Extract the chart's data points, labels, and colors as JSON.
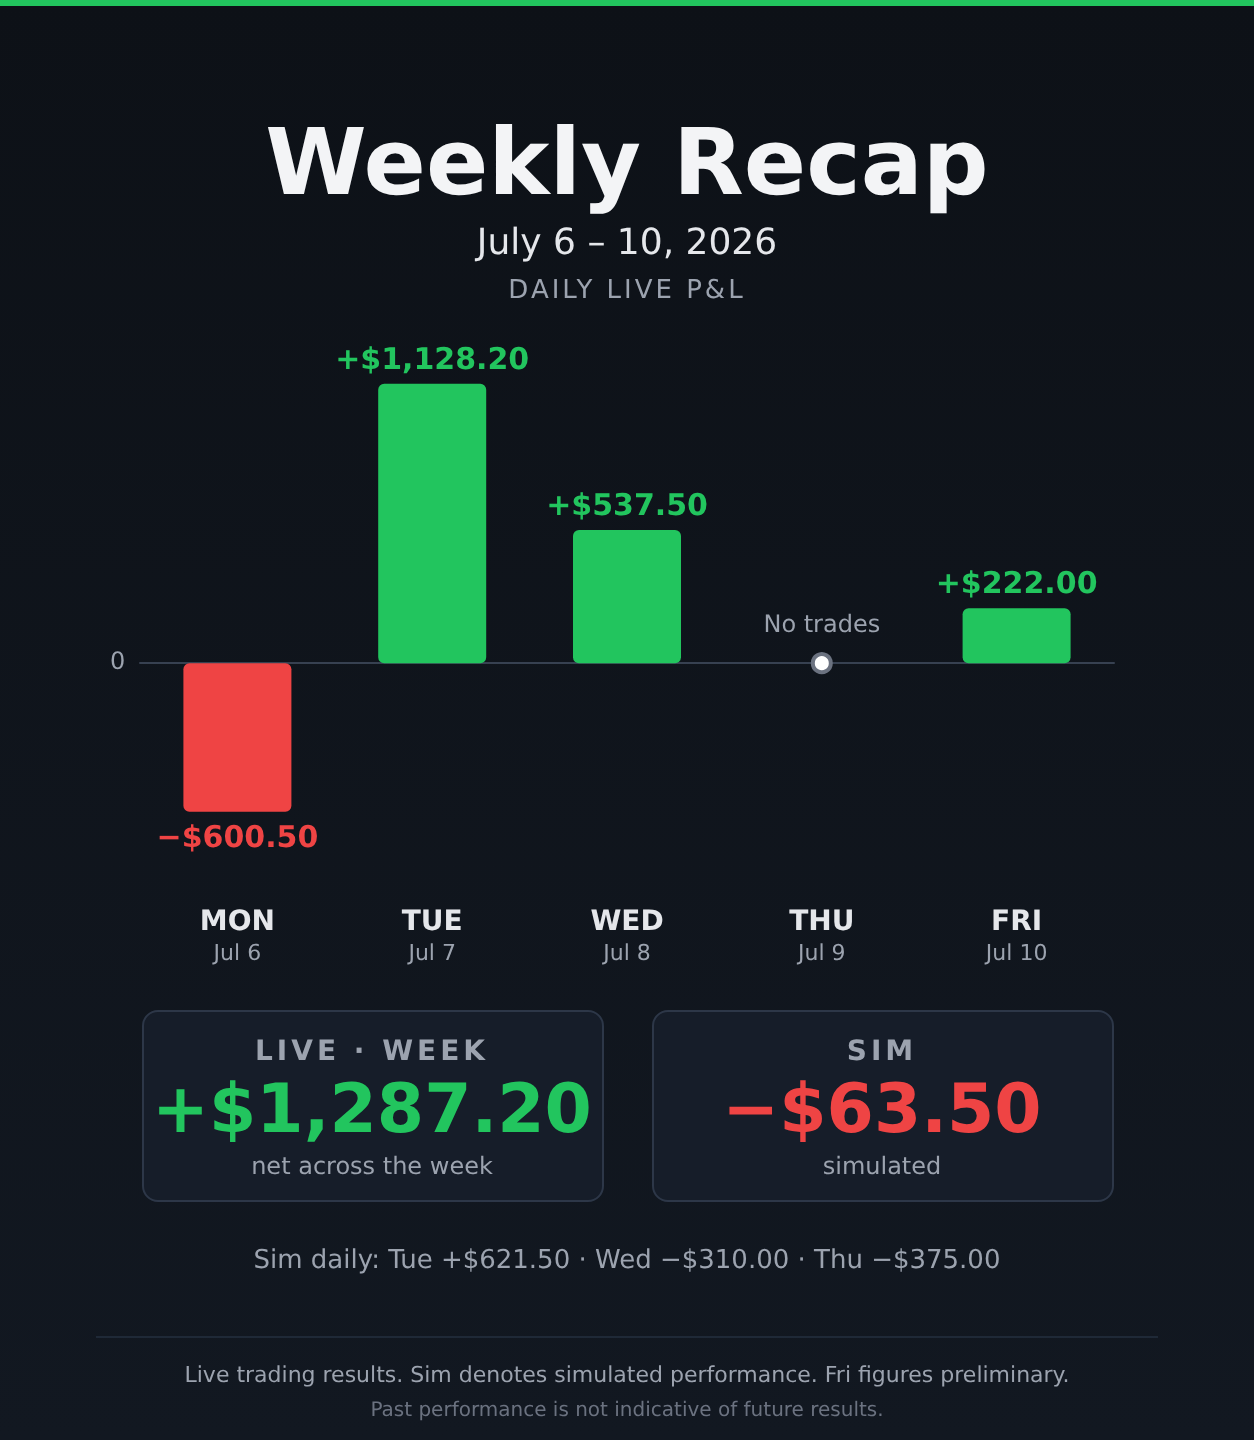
{
  "chart_data": {
    "type": "bar",
    "title": "Weekly Recap",
    "subtitle": "July 6 – 10, 2026",
    "categories": [
      "MON\nJul 6",
      "TUE\nJul 7",
      "WED\nJul 8",
      "THU\nJul 9",
      "FRI\nJul 10"
    ],
    "values": [
      -600.5,
      1128.2,
      537.5,
      null,
      222.0
    ],
    "colors": [
      "#ef4444",
      "#22c55e",
      "#22c55e",
      null,
      "#22c55e"
    ],
    "value_labels": [
      "−$600.50",
      "+$1,128.20",
      "+$537.50",
      null,
      "+$222.00"
    ],
    "annotations": [
      "DAILY LIVE P&L",
      "0",
      {
        "text": "No trades",
        "x": "THU\nJul 9",
        "y": 0
      },
      "LIVE · WEEK",
      "+$1,287.20",
      "net across the week",
      "SIM",
      "−$63.50",
      "simulated",
      "Sim daily: Tue +$621.50 · Wed −$310.00 · Thu −$375.00",
      "Live trading results. Sim denotes simulated performance. Fri figures preliminary.",
      "Past performance is not indicative of future results."
    ]
  }
}
